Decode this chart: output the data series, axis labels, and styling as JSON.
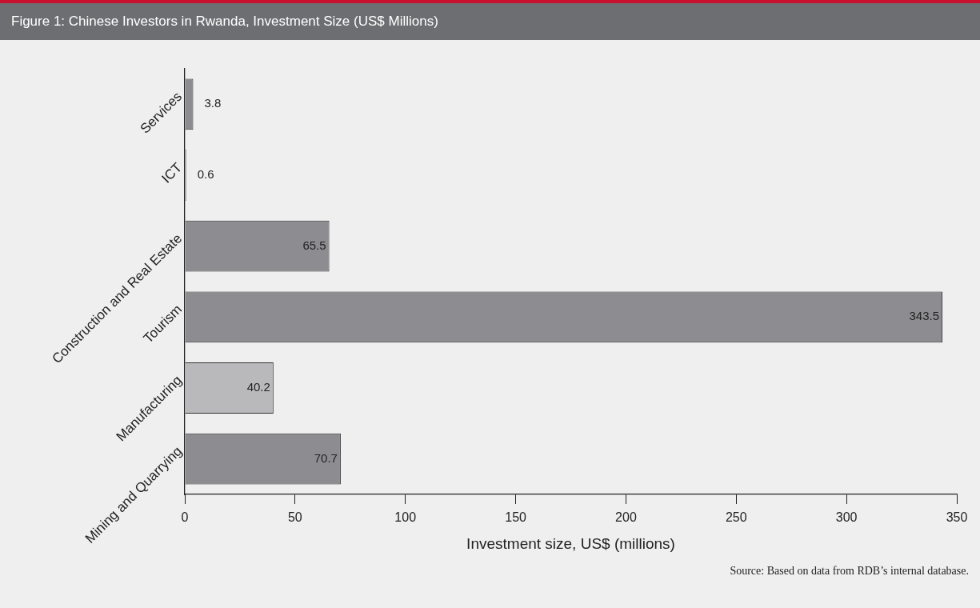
{
  "chart_data": {
    "type": "bar",
    "orientation": "horizontal",
    "title": "Figure 1:  Chinese Investors in Rwanda, Investment Size (US$ Millions)",
    "categories": [
      "Services",
      "ICT",
      "Construction and Real Estate",
      "Tourism",
      "Manufacturing",
      "Mining and Quarrying"
    ],
    "values": [
      3.8,
      0.6,
      65.5,
      343.5,
      40.2,
      70.7
    ],
    "colors": [
      "#8d8d91",
      "#8d8d91",
      "#8d8d91",
      "#8d8d91",
      "#b9b9bc",
      "#8d8d91"
    ],
    "xlim": [
      0,
      350
    ],
    "xticks": [
      0,
      50,
      100,
      150,
      200,
      250,
      300,
      350
    ],
    "xlabel": "Investment size, US$ (millions)",
    "annotations": [
      "Source: Based on data from RDB’s internal database."
    ],
    "data_labels": true,
    "grid": false,
    "legend": false
  }
}
